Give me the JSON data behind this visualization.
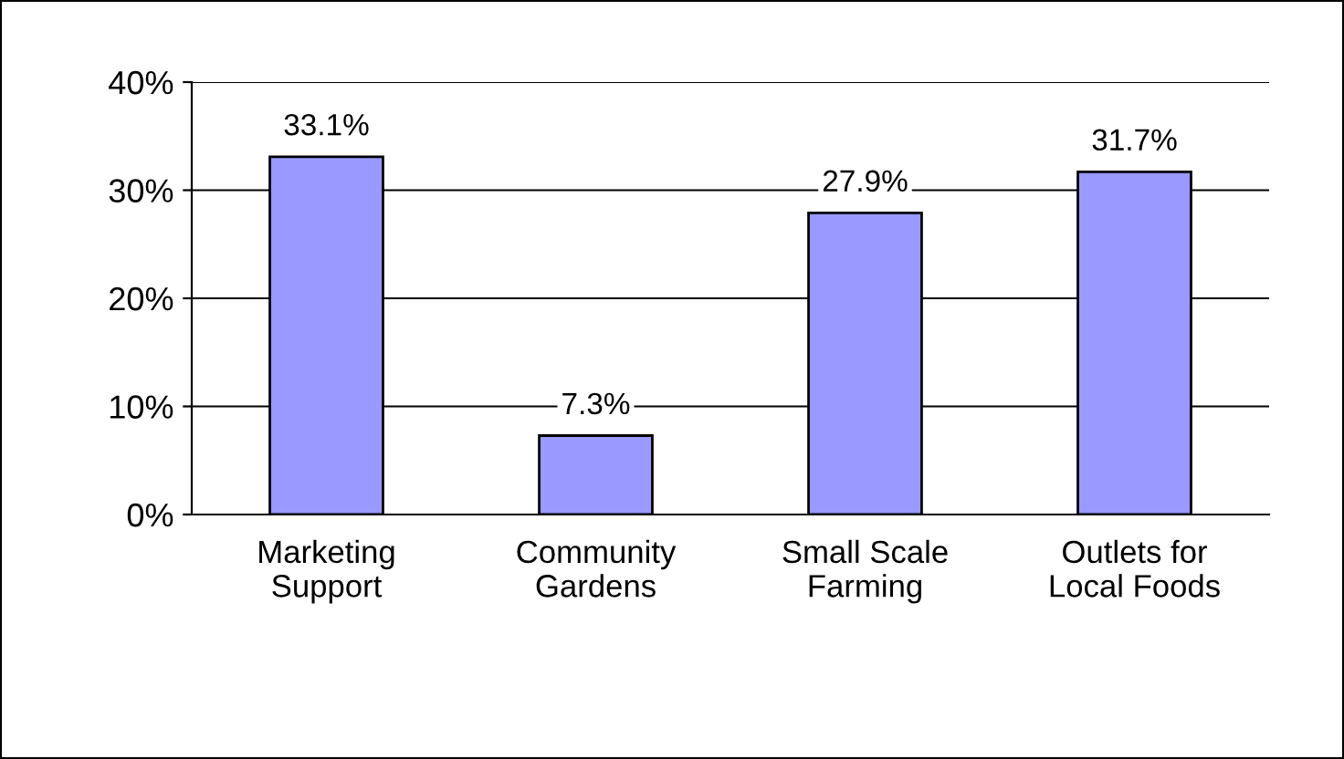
{
  "chart_data": {
    "type": "bar",
    "categories": [
      "Marketing\nSupport",
      "Community\nGardens",
      "Small Scale\nFarming",
      "Outlets for\nLocal Foods"
    ],
    "values": [
      33.1,
      7.3,
      27.9,
      31.7
    ],
    "value_labels": [
      "33.1%",
      "7.3%",
      "27.9%",
      "31.7%"
    ],
    "color": "#9999ff",
    "ylim": [
      0,
      40
    ],
    "yticks": [
      {
        "value": 0,
        "label": "0%"
      },
      {
        "value": 10,
        "label": "10%"
      },
      {
        "value": 20,
        "label": "20%"
      },
      {
        "value": 30,
        "label": "30%"
      },
      {
        "value": 40,
        "label": "40%"
      }
    ],
    "grid": "y",
    "legend": false
  }
}
